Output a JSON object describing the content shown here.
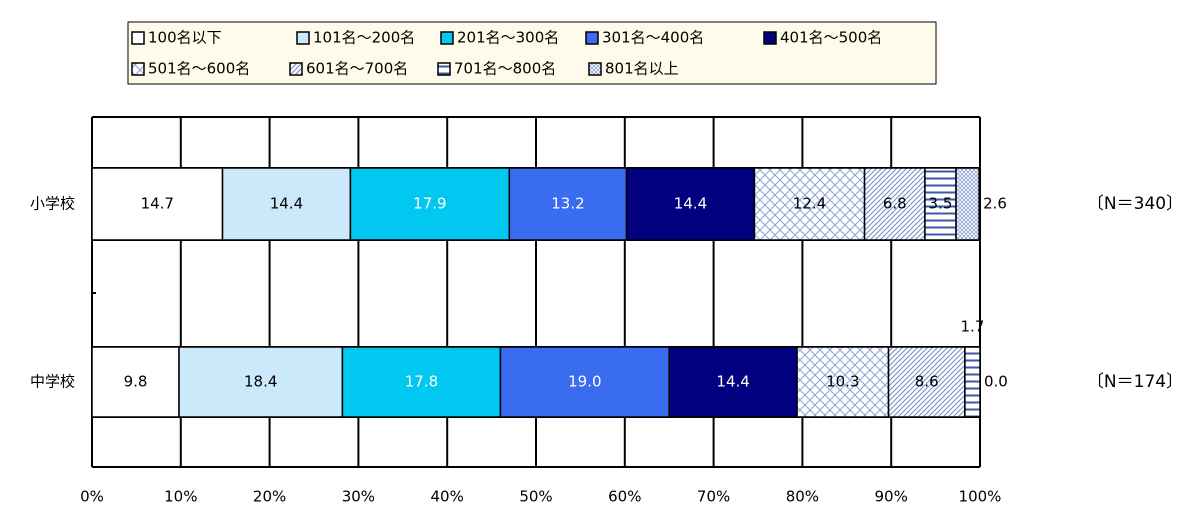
{
  "chart_data": {
    "type": "stacked-barh",
    "categories": [
      "小学校",
      "中学校"
    ],
    "annotations": [
      "〔N＝340〕",
      "〔N＝174〕"
    ],
    "series": [
      {
        "name": "100名以下",
        "color": "#ffffff",
        "values": [
          14.7,
          9.8
        ],
        "value_labels": [
          "14.7",
          "9.8"
        ]
      },
      {
        "name": "101名～200名",
        "color": "#cce9fb",
        "values": [
          14.4,
          18.4
        ],
        "value_labels": [
          "14.4",
          "18.4"
        ]
      },
      {
        "name": "201名～300名",
        "color": "#00c8f0",
        "values": [
          17.9,
          17.8
        ],
        "value_labels": [
          "17.9",
          "17.8"
        ]
      },
      {
        "name": "301名～400名",
        "color": "#3a6cf0",
        "values": [
          13.2,
          19.0
        ],
        "value_labels": [
          "13.2",
          "19.0"
        ]
      },
      {
        "name": "401名～500名",
        "color": "#000080",
        "values": [
          14.4,
          14.4
        ],
        "value_labels": [
          "14.4",
          "14.4"
        ]
      },
      {
        "name": "501名～600名",
        "color": "#8aa4d6",
        "pattern": "crosshatch",
        "values": [
          12.4,
          10.3
        ],
        "value_labels": [
          "12.4",
          "10.3"
        ]
      },
      {
        "name": "601名～700名",
        "color": "#8aa4d6",
        "pattern": "diagonal",
        "values": [
          6.8,
          8.6
        ],
        "value_labels": [
          "6.8",
          "8.6"
        ]
      },
      {
        "name": "701名～800名",
        "color": "#3a5aa8",
        "pattern": "horizontal",
        "values": [
          3.5,
          1.7
        ],
        "value_labels": [
          "3.5",
          "1.7"
        ]
      },
      {
        "name": "801名以上",
        "color": "#8aa4d6",
        "pattern": "grid",
        "values": [
          2.6,
          0.0
        ],
        "value_labels": [
          "2.6",
          "0.0"
        ]
      }
    ],
    "xlim": [
      0,
      100
    ],
    "xticks": [
      {
        "value": 0,
        "label": "0%"
      },
      {
        "value": 10,
        "label": "10%"
      },
      {
        "value": 20,
        "label": "20%"
      },
      {
        "value": 30,
        "label": "30%"
      },
      {
        "value": 40,
        "label": "40%"
      },
      {
        "value": 50,
        "label": "50%"
      },
      {
        "value": 60,
        "label": "60%"
      },
      {
        "value": 70,
        "label": "70%"
      },
      {
        "value": 80,
        "label": "80%"
      },
      {
        "value": 90,
        "label": "90%"
      },
      {
        "value": 100,
        "label": "100%"
      }
    ],
    "grid": true
  }
}
